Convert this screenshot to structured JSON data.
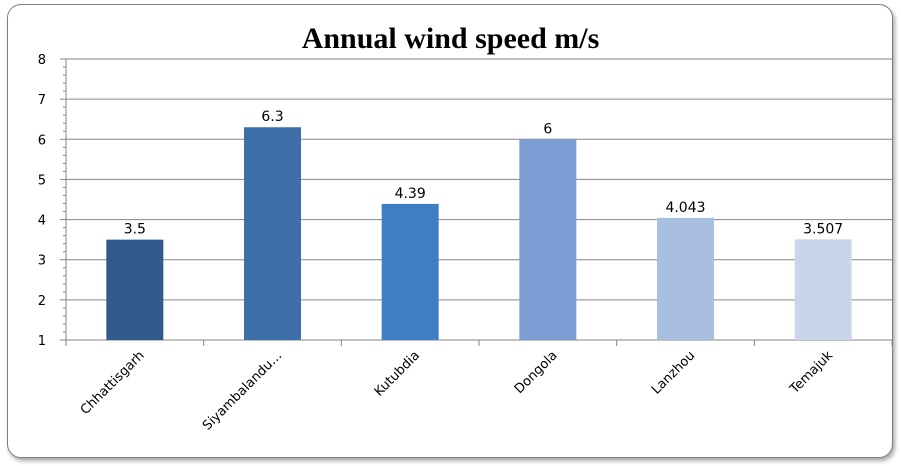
{
  "chart_data": {
    "type": "bar",
    "title": "Annual wind speed m/s",
    "xlabel": "",
    "ylabel": "",
    "categories": [
      "Chhattisgarh",
      "Siyambalandu…",
      "Kutubdia",
      "Dongola",
      "Lanzhou",
      "Temajuk"
    ],
    "values": [
      3.5,
      6.3,
      4.39,
      6,
      4.043,
      3.507
    ],
    "data_labels": [
      "3.5",
      "6.3",
      "4.39",
      "6",
      "4.043",
      "3.507"
    ],
    "ylim": [
      1,
      8
    ],
    "yticks": [
      "1",
      "2",
      "3",
      "4",
      "5",
      "6",
      "7",
      "8"
    ],
    "grid": true,
    "legend": "none",
    "colors": [
      "#335a8c",
      "#3d6fa8",
      "#3f7ec2",
      "#7b9dd3",
      "#a8bfe0",
      "#c9d5ea"
    ]
  }
}
